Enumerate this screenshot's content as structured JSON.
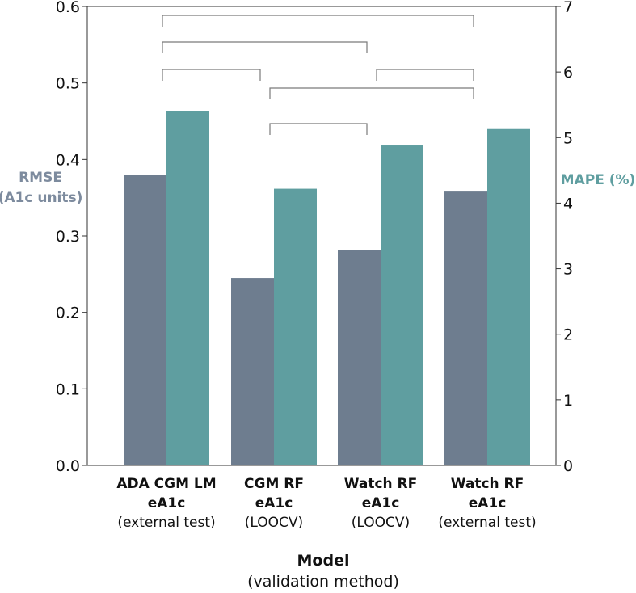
{
  "chart_data": {
    "type": "bar",
    "categories": [
      {
        "line1": "ADA CGM LM",
        "line2": "eA1c",
        "line3": "(external test)"
      },
      {
        "line1": "CGM RF",
        "line2": "eA1c",
        "line3": "(LOOCV)"
      },
      {
        "line1": "Watch RF",
        "line2": "eA1c",
        "line3": "(LOOCV)"
      },
      {
        "line1": "Watch RF",
        "line2": "eA1c",
        "line3": "(external test)"
      }
    ],
    "series": [
      {
        "name": "RMSE (A1c units)",
        "axis": "left",
        "color": "#6e7d8f",
        "values": [
          0.38,
          0.245,
          0.282,
          0.358
        ]
      },
      {
        "name": "MAPE (%)",
        "axis": "right",
        "color": "#5f9ea0",
        "values": [
          5.4,
          4.22,
          4.88,
          5.13
        ]
      }
    ],
    "left_axis": {
      "label_line1": "RMSE",
      "label_line2": "(A1c units)",
      "color": "#7d8b9e",
      "ylim": [
        0,
        0.6
      ],
      "ticks": [
        "0.0",
        "0.1",
        "0.2",
        "0.3",
        "0.4",
        "0.5",
        "0.6"
      ]
    },
    "right_axis": {
      "label": "MAPE (%)",
      "color": "#5f9ea0",
      "ylim": [
        0,
        7
      ],
      "ticks": [
        "0",
        "1",
        "2",
        "3",
        "4",
        "5",
        "6",
        "7"
      ]
    },
    "xlabel": "Model",
    "xlabel_sub": "(validation method)",
    "brackets": [
      {
        "from": 0,
        "to": 3,
        "level": 1
      },
      {
        "from": 0,
        "to": 2,
        "level": 2
      },
      {
        "from": 0,
        "to": 1,
        "level": 3
      },
      {
        "from": 2,
        "to": 3,
        "level": 3
      },
      {
        "from": 1,
        "to": 3,
        "level": 4
      },
      {
        "from": 1,
        "to": 2,
        "level": 5
      }
    ],
    "grid": false,
    "legend": "none"
  }
}
